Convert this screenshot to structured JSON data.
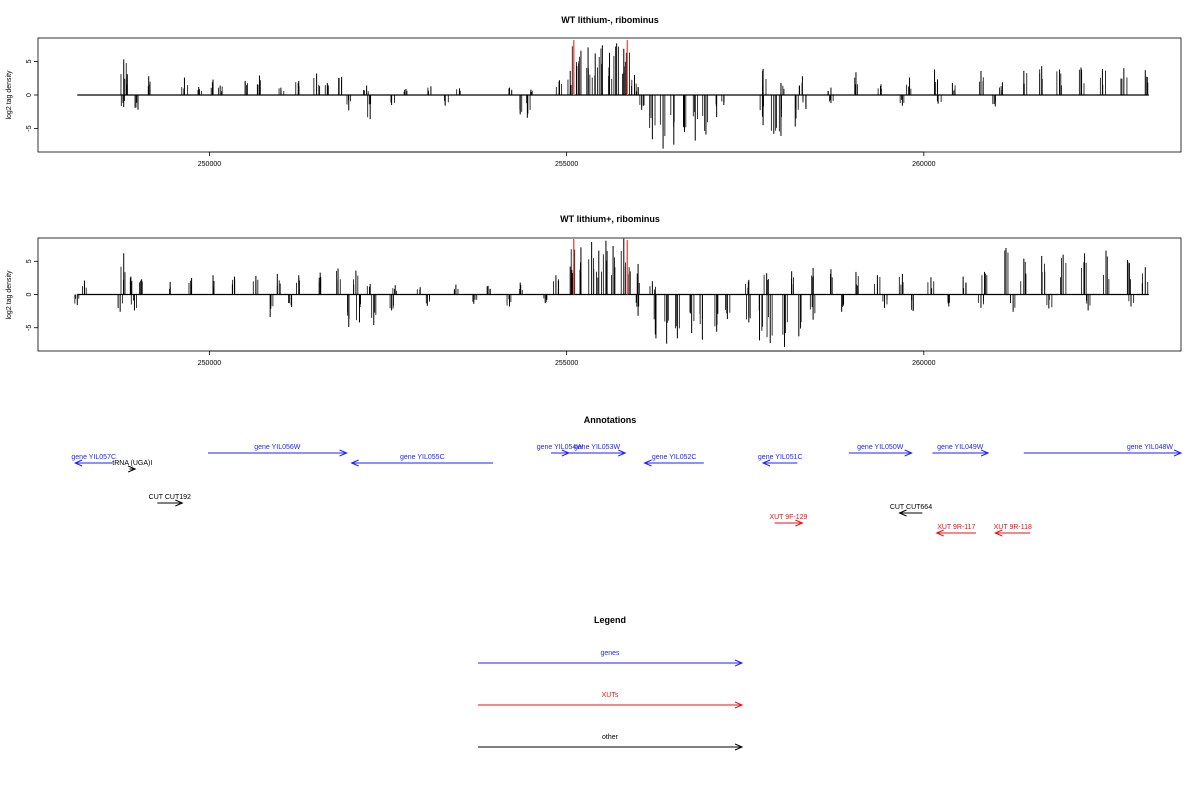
{
  "colors": {
    "gene": "#1f1fff",
    "xut": "#ee1111",
    "other": "#000000",
    "highlight": "#ff5555",
    "axis": "#000000"
  },
  "chart_data": [
    {
      "type": "bar",
      "title": "WT lithium-, ribominus",
      "ylabel": "log2 tag density",
      "xlim": [
        247600,
        263600
      ],
      "ylim": [
        -8.5,
        8.5
      ],
      "xticks": [
        250000,
        255000,
        260000
      ],
      "yticks": [
        5,
        0,
        -5
      ],
      "baseline": [
        248150,
        263150
      ],
      "highlights": [
        255100,
        255850
      ],
      "bars": [
        [
          248800,
          5.3
        ],
        [
          248850,
          3.1
        ],
        [
          249150,
          2.8
        ],
        [
          249650,
          2.6
        ],
        [
          249850,
          1.2
        ],
        [
          250050,
          2.3
        ],
        [
          250150,
          1.4
        ],
        [
          250500,
          2.1
        ],
        [
          250700,
          2.9
        ],
        [
          251000,
          1.1
        ],
        [
          251250,
          2.1
        ],
        [
          251500,
          3.2
        ],
        [
          251650,
          1.8
        ],
        [
          251850,
          2.7
        ],
        [
          252200,
          1.4
        ],
        [
          252750,
          0.9
        ],
        [
          253100,
          1.3
        ],
        [
          253500,
          1.0
        ],
        [
          254200,
          1.1
        ],
        [
          254500,
          0.8
        ],
        [
          254900,
          2.2
        ],
        [
          255050,
          3.6
        ],
        [
          255100,
          7.8
        ],
        [
          255200,
          6.6
        ],
        [
          255300,
          7.1
        ],
        [
          255400,
          6.2
        ],
        [
          255500,
          7.4
        ],
        [
          255600,
          6.3
        ],
        [
          255700,
          7.7
        ],
        [
          255800,
          6.9
        ],
        [
          255850,
          7.1
        ],
        [
          255950,
          3.0
        ],
        [
          256000,
          1.2
        ],
        [
          257750,
          3.9
        ],
        [
          258000,
          1.8
        ],
        [
          258300,
          2.8
        ],
        [
          258700,
          1.1
        ],
        [
          259050,
          3.4
        ],
        [
          259400,
          1.6
        ],
        [
          259800,
          2.6
        ],
        [
          260150,
          3.8
        ],
        [
          260400,
          1.8
        ],
        [
          260800,
          3.6
        ],
        [
          261100,
          1.9
        ],
        [
          261400,
          3.6
        ],
        [
          261650,
          4.3
        ],
        [
          261900,
          3.8
        ],
        [
          262200,
          4.1
        ],
        [
          262500,
          3.9
        ],
        [
          262800,
          4.0
        ],
        [
          263100,
          3.7
        ],
        [
          248800,
          -1.8
        ],
        [
          249000,
          -2.2
        ],
        [
          251950,
          -2.3
        ],
        [
          252250,
          -3.6
        ],
        [
          252550,
          -1.5
        ],
        [
          253300,
          -1.6
        ],
        [
          254350,
          -2.9
        ],
        [
          254450,
          -3.4
        ],
        [
          256050,
          -2.2
        ],
        [
          256200,
          -6.6
        ],
        [
          256350,
          -8.0
        ],
        [
          256500,
          -7.4
        ],
        [
          256650,
          -5.5
        ],
        [
          256800,
          -6.8
        ],
        [
          256950,
          -5.9
        ],
        [
          257100,
          -3.3
        ],
        [
          257200,
          -1.5
        ],
        [
          257750,
          -4.5
        ],
        [
          257900,
          -5.8
        ],
        [
          258000,
          -6.1
        ],
        [
          258200,
          -4.7
        ],
        [
          258350,
          -2.1
        ],
        [
          258700,
          -1.2
        ],
        [
          259700,
          -1.6
        ],
        [
          260200,
          -1.3
        ],
        [
          261000,
          -1.7
        ]
      ]
    },
    {
      "type": "bar",
      "title": "WT lithium+, ribominus",
      "ylabel": "log2 tag density",
      "xlim": [
        247600,
        263600
      ],
      "ylim": [
        -8.5,
        8.5
      ],
      "xticks": [
        250000,
        255000,
        260000
      ],
      "yticks": [
        5,
        0,
        -5
      ],
      "baseline": [
        248150,
        263150
      ],
      "highlights": [
        255100,
        255850
      ],
      "bars": [
        [
          248250,
          2.1
        ],
        [
          248800,
          6.2
        ],
        [
          248900,
          2.7
        ],
        [
          249050,
          2.3
        ],
        [
          249450,
          1.9
        ],
        [
          249750,
          2.5
        ],
        [
          250050,
          2.9
        ],
        [
          250350,
          2.7
        ],
        [
          250650,
          2.8
        ],
        [
          250950,
          3.1
        ],
        [
          251250,
          2.9
        ],
        [
          251550,
          3.3
        ],
        [
          251800,
          3.9
        ],
        [
          252050,
          3.6
        ],
        [
          252250,
          1.6
        ],
        [
          252600,
          1.4
        ],
        [
          252950,
          1.1
        ],
        [
          253450,
          1.5
        ],
        [
          253900,
          1.3
        ],
        [
          254350,
          1.8
        ],
        [
          254850,
          2.9
        ],
        [
          255050,
          4.2
        ],
        [
          255100,
          8.3
        ],
        [
          255200,
          7.1
        ],
        [
          255350,
          7.9
        ],
        [
          255450,
          6.6
        ],
        [
          255550,
          8.1
        ],
        [
          255650,
          7.3
        ],
        [
          255800,
          8.4
        ],
        [
          255850,
          7.8
        ],
        [
          256000,
          4.6
        ],
        [
          256200,
          2.0
        ],
        [
          257550,
          2.2
        ],
        [
          257800,
          3.2
        ],
        [
          258150,
          3.5
        ],
        [
          258450,
          4.0
        ],
        [
          258700,
          3.8
        ],
        [
          259050,
          3.4
        ],
        [
          259350,
          2.9
        ],
        [
          259700,
          3.1
        ],
        [
          260100,
          2.6
        ],
        [
          260550,
          2.7
        ],
        [
          260850,
          3.4
        ],
        [
          261150,
          7.0
        ],
        [
          261400,
          5.4
        ],
        [
          261650,
          5.8
        ],
        [
          261950,
          6.0
        ],
        [
          262250,
          6.2
        ],
        [
          262550,
          6.6
        ],
        [
          262850,
          5.2
        ],
        [
          263100,
          4.1
        ],
        [
          248150,
          -1.6
        ],
        [
          248750,
          -2.6
        ],
        [
          248950,
          -2.4
        ],
        [
          250850,
          -3.4
        ],
        [
          251150,
          -1.9
        ],
        [
          251950,
          -4.9
        ],
        [
          252100,
          -4.2
        ],
        [
          252300,
          -4.6
        ],
        [
          252550,
          -2.4
        ],
        [
          253050,
          -1.7
        ],
        [
          253700,
          -1.4
        ],
        [
          254200,
          -1.8
        ],
        [
          254700,
          -1.3
        ],
        [
          256000,
          -3.2
        ],
        [
          256250,
          -6.6
        ],
        [
          256400,
          -7.4
        ],
        [
          256550,
          -6.6
        ],
        [
          256750,
          -5.8
        ],
        [
          256900,
          -6.8
        ],
        [
          257100,
          -5.6
        ],
        [
          257250,
          -3.7
        ],
        [
          257550,
          -4.2
        ],
        [
          257700,
          -6.9
        ],
        [
          257850,
          -7.3
        ],
        [
          258050,
          -7.9
        ],
        [
          258250,
          -6.3
        ],
        [
          258450,
          -3.8
        ],
        [
          258850,
          -2.6
        ],
        [
          259450,
          -2.0
        ],
        [
          259850,
          -2.5
        ],
        [
          260350,
          -1.8
        ],
        [
          260800,
          -2.0
        ],
        [
          261250,
          -2.6
        ],
        [
          261750,
          -2.1
        ],
        [
          262300,
          -2.4
        ],
        [
          262900,
          -1.8
        ]
      ]
    }
  ],
  "annotations": {
    "title": "Annotations",
    "items": [
      {
        "label": "gene YIL057C",
        "class": "gene",
        "dir": -1,
        "x1": 248120,
        "x2": 248640,
        "row": 1
      },
      {
        "label": "tRNA (UGA)I",
        "class": "other",
        "dir": 1,
        "x1": 248880,
        "x2": 248960,
        "row": 1.6
      },
      {
        "label": "gene YIL056W",
        "class": "gene",
        "dir": 1,
        "x1": 249980,
        "x2": 251920,
        "row": 0
      },
      {
        "label": "gene YIL055C",
        "class": "gene",
        "dir": -1,
        "x1": 251990,
        "x2": 253970,
        "row": 1
      },
      {
        "label": "gene YIL054W",
        "class": "gene",
        "dir": 1,
        "x1": 254780,
        "x2": 255030,
        "row": 0
      },
      {
        "label": "gene YIL053W",
        "class": "gene",
        "dir": 1,
        "x1": 255030,
        "x2": 255820,
        "row": 0
      },
      {
        "label": "gene YIL052C",
        "class": "gene",
        "dir": -1,
        "x1": 256090,
        "x2": 256920,
        "row": 1
      },
      {
        "label": "gene YIL051C",
        "class": "gene",
        "dir": -1,
        "x1": 257750,
        "x2": 258230,
        "row": 1
      },
      {
        "label": "gene YIL050W",
        "class": "gene",
        "dir": 1,
        "x1": 258950,
        "x2": 259830,
        "row": 0
      },
      {
        "label": "gene YIL049W",
        "class": "gene",
        "dir": 1,
        "x1": 260120,
        "x2": 260900,
        "row": 0
      },
      {
        "label": "gene YIL048W",
        "class": "gene",
        "dir": 1,
        "x1": 261400,
        "x2": 263600,
        "row": 0
      },
      {
        "label": "CUT CUT192",
        "class": "other",
        "dir": 1,
        "x1": 249270,
        "x2": 249620,
        "row": 5
      },
      {
        "label": "CUT CUT664",
        "class": "other",
        "dir": -1,
        "x1": 259660,
        "x2": 259980,
        "row": 6
      },
      {
        "label": "XUT 9F-129",
        "class": "xut",
        "dir": 1,
        "x1": 257910,
        "x2": 258300,
        "row": 7
      },
      {
        "label": "XUT 9R-117",
        "class": "xut",
        "dir": -1,
        "x1": 260180,
        "x2": 260730,
        "row": 8
      },
      {
        "label": "XUT 9R-118",
        "class": "xut",
        "dir": -1,
        "x1": 261000,
        "x2": 261490,
        "row": 8
      }
    ]
  },
  "legend": {
    "title": "Legend",
    "items": [
      {
        "label": "genes",
        "class": "gene"
      },
      {
        "label": "XUTs",
        "class": "xut"
      },
      {
        "label": "other",
        "class": "other"
      }
    ]
  }
}
